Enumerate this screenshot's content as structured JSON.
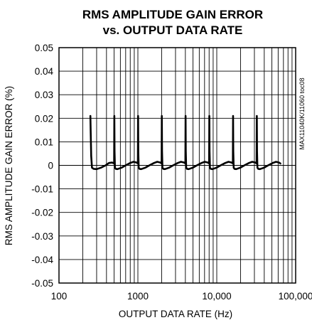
{
  "chart_data": {
    "type": "line",
    "title_line1": "RMS AMPLITUDE GAIN ERROR",
    "title_line2": "vs. OUTPUT DATA RATE",
    "xlabel": "OUTPUT DATA RATE (Hz)",
    "ylabel": "RMS AMPLITUDE GAIN ERROR (%)",
    "side_label": "MAX11040K/11060 toc08",
    "x_scale": "log",
    "xlim": [
      100,
      100000
    ],
    "ylim": [
      -0.05,
      0.05
    ],
    "x_ticks": [
      100,
      1000,
      10000,
      100000
    ],
    "x_tick_labels": [
      "100",
      "1000",
      "10,000",
      "100,000"
    ],
    "y_ticks": [
      0.05,
      0.04,
      0.03,
      0.02,
      0.01,
      0,
      -0.01,
      -0.02,
      -0.03,
      -0.04,
      -0.05
    ],
    "y_tick_labels": [
      "0.05",
      "0.04",
      "0.03",
      "0.02",
      "0.01",
      "0",
      "-0.01",
      "-0.02",
      "-0.03",
      "-0.04",
      "-0.05"
    ],
    "grid": true,
    "series": [
      {
        "color": "#000000",
        "x": [
          250,
          252,
          256,
          262,
          275,
          300,
          340,
          390,
          430,
          470,
          500,
          503,
          506,
          512,
          525,
          550,
          620,
          700,
          800,
          880,
          960,
          1000,
          1006,
          1012,
          1024,
          1050,
          1100,
          1240,
          1400,
          1600,
          1760,
          1920,
          2000,
          2012,
          2024,
          2048,
          2100,
          2200,
          2480,
          2800,
          3200,
          3520,
          3840,
          4000,
          4024,
          4048,
          4096,
          4200,
          4400,
          4960,
          5600,
          6400,
          7040,
          7680,
          8000,
          8048,
          8096,
          8192,
          8400,
          8800,
          9920,
          11200,
          12800,
          14080,
          15360,
          16000,
          16096,
          16192,
          16384,
          16800,
          17600,
          19840,
          22400,
          25600,
          28160,
          30720,
          32000,
          32192,
          32384,
          32768,
          33600,
          35200,
          39680,
          44800,
          51200,
          56320,
          61440,
          64000
        ],
        "y": [
          0.021,
          0.015,
          0.004,
          -0.001,
          -0.0015,
          -0.0016,
          -0.001,
          0,
          0.001,
          0.0012,
          0.0008,
          0.021,
          0.006,
          -0.001,
          -0.0015,
          -0.0016,
          -0.001,
          0,
          0.001,
          0.0015,
          0.0012,
          0.0008,
          0.021,
          0.006,
          -0.001,
          -0.0015,
          -0.0016,
          -0.001,
          0,
          0.001,
          0.0015,
          0.0012,
          0.0008,
          0.021,
          0.006,
          -0.001,
          -0.0015,
          -0.0016,
          -0.001,
          0,
          0.001,
          0.0015,
          0.0012,
          0.0008,
          0.021,
          0.006,
          -0.001,
          -0.0015,
          -0.0016,
          -0.001,
          0,
          0.001,
          0.0015,
          0.0012,
          0.0008,
          0.021,
          0.006,
          -0.001,
          -0.0015,
          -0.0016,
          -0.001,
          0,
          0.001,
          0.0015,
          0.0012,
          0.0008,
          0.021,
          0.006,
          -0.001,
          -0.0015,
          -0.0016,
          -0.001,
          0,
          0.001,
          0.0015,
          0.0012,
          0.0008,
          0.021,
          0.006,
          -0.001,
          -0.0015,
          -0.0016,
          -0.001,
          0,
          0.001,
          0.0015,
          0.0012,
          0.0008
        ]
      }
    ]
  }
}
